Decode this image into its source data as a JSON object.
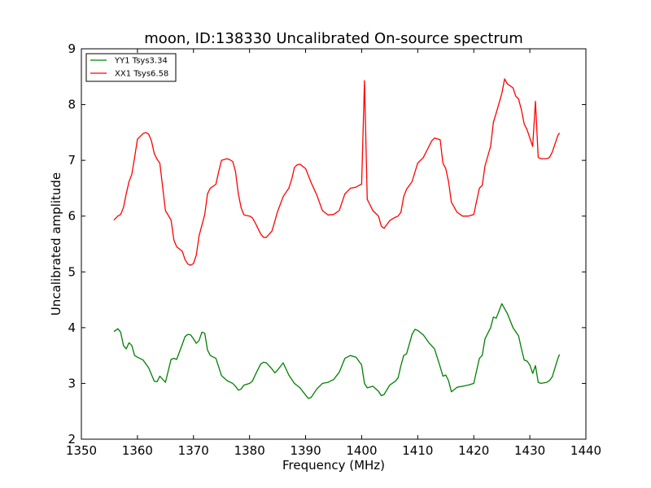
{
  "chart_data": {
    "type": "line",
    "title": "moon, ID:138330 Uncalibrated On-source spectrum",
    "xlabel": "Frequency (MHz)",
    "ylabel": "Uncalibrated amplitude",
    "xlim": [
      1350,
      1440
    ],
    "ylim": [
      2,
      9
    ],
    "xticks": [
      1350,
      1360,
      1370,
      1380,
      1390,
      1400,
      1410,
      1420,
      1430,
      1440
    ],
    "yticks": [
      2,
      3,
      4,
      5,
      6,
      7,
      8,
      9
    ],
    "grid": false,
    "legend_position": "top-left",
    "series": [
      {
        "name": "YY1 Tsys3.34",
        "color": "#008000",
        "x": [
          1355.8,
          1356.5,
          1357.0,
          1357.5,
          1358.0,
          1358.5,
          1359.0,
          1359.5,
          1360.0,
          1361.0,
          1362.0,
          1363.0,
          1363.5,
          1364.0,
          1365.0,
          1366.0,
          1366.5,
          1367.0,
          1368.0,
          1368.5,
          1369.0,
          1369.5,
          1370.0,
          1370.5,
          1371.0,
          1371.5,
          1372.0,
          1372.5,
          1373.0,
          1374.0,
          1375.0,
          1376.0,
          1377.0,
          1377.5,
          1378.0,
          1378.5,
          1379.0,
          1380.0,
          1380.5,
          1381.0,
          1382.0,
          1382.5,
          1383.0,
          1384.0,
          1384.5,
          1385.0,
          1386.0,
          1387.0,
          1388.0,
          1389.0,
          1390.0,
          1390.5,
          1391.0,
          1392.0,
          1393.0,
          1394.0,
          1395.0,
          1396.0,
          1397.0,
          1398.0,
          1399.0,
          1400.0,
          1400.5,
          1401.0,
          1402.0,
          1403.0,
          1403.5,
          1404.0,
          1405.0,
          1406.0,
          1406.5,
          1407.0,
          1407.5,
          1408.0,
          1409.0,
          1409.5,
          1410.0,
          1411.0,
          1412.0,
          1413.0,
          1414.0,
          1414.5,
          1415.0,
          1415.5,
          1416.0,
          1417.0,
          1418.0,
          1419.0,
          1420.0,
          1421.0,
          1421.5,
          1422.0,
          1423.0,
          1423.5,
          1424.0,
          1425.0,
          1426.0,
          1427.0,
          1428.0,
          1428.5,
          1429.0,
          1429.5,
          1430.0,
          1430.5,
          1431.0,
          1431.5,
          1432.0,
          1433.0,
          1433.5,
          1434.0,
          1435.0,
          1435.3
        ],
        "values": [
          3.93,
          3.98,
          3.92,
          3.68,
          3.62,
          3.73,
          3.68,
          3.5,
          3.47,
          3.42,
          3.28,
          3.04,
          3.03,
          3.13,
          3.02,
          3.43,
          3.45,
          3.43,
          3.7,
          3.84,
          3.88,
          3.87,
          3.8,
          3.72,
          3.77,
          3.92,
          3.9,
          3.6,
          3.5,
          3.45,
          3.14,
          3.05,
          3.0,
          2.95,
          2.88,
          2.9,
          2.97,
          3.0,
          3.04,
          3.15,
          3.35,
          3.38,
          3.37,
          3.26,
          3.19,
          3.24,
          3.37,
          3.15,
          3.0,
          2.92,
          2.79,
          2.73,
          2.75,
          2.9,
          3.0,
          3.02,
          3.07,
          3.2,
          3.45,
          3.5,
          3.47,
          3.33,
          3.0,
          2.92,
          2.95,
          2.86,
          2.78,
          2.8,
          2.97,
          3.04,
          3.1,
          3.32,
          3.5,
          3.53,
          3.88,
          3.97,
          3.95,
          3.87,
          3.73,
          3.62,
          3.3,
          3.13,
          3.15,
          3.05,
          2.85,
          2.93,
          2.95,
          2.97,
          3.0,
          3.45,
          3.5,
          3.8,
          4.0,
          4.19,
          4.17,
          4.43,
          4.25,
          4.0,
          3.85,
          3.62,
          3.42,
          3.4,
          3.33,
          3.18,
          3.32,
          3.02,
          3.0,
          3.02,
          3.05,
          3.12,
          3.45,
          3.52
        ]
      },
      {
        "name": "XX1 Tsys6.58",
        "color": "#ff0000",
        "x": [
          1355.8,
          1356.5,
          1357.0,
          1357.5,
          1358.0,
          1358.5,
          1359.0,
          1359.5,
          1360.0,
          1361.0,
          1361.5,
          1362.0,
          1362.5,
          1363.0,
          1363.5,
          1364.0,
          1365.0,
          1366.0,
          1366.5,
          1367.0,
          1368.0,
          1368.5,
          1369.0,
          1369.5,
          1370.0,
          1370.5,
          1371.0,
          1372.0,
          1372.5,
          1373.0,
          1374.0,
          1374.5,
          1375.0,
          1376.0,
          1376.5,
          1377.0,
          1377.5,
          1378.0,
          1378.5,
          1379.0,
          1380.0,
          1380.5,
          1381.0,
          1382.0,
          1382.5,
          1383.0,
          1384.0,
          1385.0,
          1386.0,
          1387.0,
          1387.5,
          1388.0,
          1388.5,
          1389.0,
          1390.0,
          1391.0,
          1392.0,
          1393.0,
          1394.0,
          1395.0,
          1396.0,
          1397.0,
          1398.0,
          1399.0,
          1399.5,
          1400.0,
          1400.5,
          1401.0,
          1402.0,
          1403.0,
          1403.5,
          1404.0,
          1405.0,
          1406.0,
          1406.5,
          1407.0,
          1407.5,
          1408.0,
          1409.0,
          1410.0,
          1411.0,
          1412.0,
          1412.5,
          1413.0,
          1414.0,
          1414.5,
          1415.0,
          1415.5,
          1416.0,
          1417.0,
          1418.0,
          1419.0,
          1420.0,
          1421.0,
          1421.5,
          1422.0,
          1423.0,
          1423.5,
          1424.0,
          1425.0,
          1425.5,
          1426.0,
          1427.0,
          1427.5,
          1428.0,
          1428.5,
          1429.0,
          1429.5,
          1430.0,
          1430.5,
          1431.0,
          1431.5,
          1432.0,
          1433.0,
          1433.5,
          1434.0,
          1435.0,
          1435.3
        ],
        "values": [
          5.93,
          6.0,
          6.03,
          6.15,
          6.4,
          6.62,
          6.75,
          7.05,
          7.38,
          7.48,
          7.5,
          7.47,
          7.35,
          7.12,
          7.02,
          6.95,
          6.1,
          5.93,
          5.57,
          5.45,
          5.37,
          5.22,
          5.14,
          5.12,
          5.15,
          5.3,
          5.65,
          6.03,
          6.4,
          6.5,
          6.57,
          6.8,
          7.0,
          7.03,
          7.01,
          6.98,
          6.8,
          6.4,
          6.15,
          6.02,
          6.0,
          5.97,
          5.88,
          5.68,
          5.62,
          5.62,
          5.73,
          6.08,
          6.35,
          6.5,
          6.65,
          6.87,
          6.92,
          6.93,
          6.85,
          6.6,
          6.38,
          6.1,
          6.02,
          6.03,
          6.1,
          6.4,
          6.5,
          6.52,
          6.55,
          6.57,
          8.43,
          6.3,
          6.1,
          6.0,
          5.82,
          5.78,
          5.92,
          5.98,
          6.0,
          6.07,
          6.35,
          6.48,
          6.62,
          6.95,
          7.05,
          7.25,
          7.35,
          7.4,
          7.37,
          6.95,
          6.85,
          6.62,
          6.25,
          6.07,
          6.0,
          6.0,
          6.03,
          6.5,
          6.55,
          6.9,
          7.25,
          7.68,
          7.85,
          8.2,
          8.46,
          8.37,
          8.3,
          8.15,
          8.1,
          7.9,
          7.65,
          7.55,
          7.4,
          7.25,
          8.06,
          7.05,
          7.03,
          7.03,
          7.05,
          7.15,
          7.45,
          7.49
        ]
      }
    ]
  }
}
